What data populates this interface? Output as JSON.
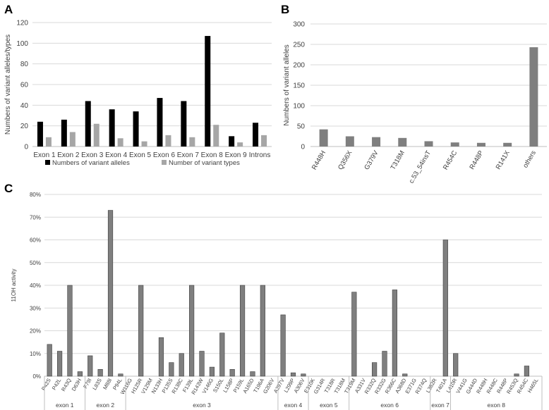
{
  "panels": {
    "a": "A",
    "b": "B",
    "c": "C"
  },
  "colors": {
    "black_series": "#000000",
    "gray_series": "#a6a6a6",
    "bar_b": "#7f7f7f",
    "bar_c": "#7f7f7f",
    "grid": "#d9d9d9",
    "axis": "#bfbfbf",
    "text": "#404040"
  },
  "chart_data": [
    {
      "panel": "A",
      "type": "bar",
      "ylabel": "Numbers of variant alleles/types",
      "xlabel": "",
      "ylim": [
        0,
        120
      ],
      "yticks": [
        0,
        20,
        40,
        60,
        80,
        100,
        120
      ],
      "grid": true,
      "legend_placement": "bottom",
      "categories": [
        "Exon 1",
        "Exon 2",
        "Exon 3",
        "Exon 4",
        "Exon 5",
        "Exon 6",
        "Exon 7",
        "Exon 8",
        "Exon 9",
        "Introns"
      ],
      "series": [
        {
          "name": "Numbers of variant alleles",
          "values": [
            24,
            26,
            44,
            36,
            34,
            47,
            44,
            107,
            10,
            23
          ]
        },
        {
          "name": "Number of variant types",
          "values": [
            9,
            14,
            22,
            8,
            5,
            11,
            9,
            21,
            4,
            11
          ]
        }
      ]
    },
    {
      "panel": "B",
      "type": "bar",
      "ylabel": "Numbers of variant alleles",
      "xlabel": "",
      "ylim": [
        0,
        300
      ],
      "yticks": [
        0,
        50,
        100,
        150,
        200,
        250,
        300
      ],
      "grid": true,
      "categories": [
        "R448H",
        "Q356X",
        "G379V",
        "T318M",
        "c.53_54insT",
        "R454C",
        "R448P",
        "R141X",
        "others"
      ],
      "values": [
        42,
        25,
        23,
        21,
        13,
        10,
        9,
        9,
        243
      ]
    },
    {
      "panel": "C",
      "type": "bar",
      "ylabel": "11OH activity",
      "xlabel": "",
      "ylim": [
        0,
        80
      ],
      "yticks": [
        "0%",
        "10%",
        "20%",
        "30%",
        "40%",
        "50%",
        "60%",
        "70%",
        "80%"
      ],
      "grid": true,
      "categories": [
        "P42S",
        "P42L",
        "R43Q",
        "D63H",
        "F79I",
        "L83S",
        "M88I",
        "P94L",
        "W116G",
        "H125R",
        "V129M",
        "N133H",
        "P135S",
        "R138C",
        "F139L",
        "R143W",
        "V146G",
        "S150L",
        "L158P",
        "P159L",
        "A165D",
        "T196A",
        "G206V",
        "A297V",
        "L299P",
        "A306V",
        "E310K",
        "G314R",
        "T318R",
        "T318M",
        "T319M",
        "A331V",
        "R332Q",
        "R332G",
        "R366C",
        "A368D",
        "E371G",
        "R374Q",
        "L382R",
        "T401A",
        "L410R",
        "V441G",
        "G444D",
        "R448H",
        "R448C",
        "R448P",
        "R453Q",
        "R454C",
        "H465L"
      ],
      "values": [
        14,
        11,
        40,
        2,
        9,
        3,
        73,
        1,
        0,
        40,
        0,
        17,
        6,
        10,
        40,
        11,
        4,
        19,
        3,
        40,
        2,
        40,
        0,
        27,
        1.5,
        1,
        0,
        0,
        0,
        0,
        37,
        0,
        6,
        11,
        38,
        1,
        0,
        0,
        0,
        60,
        10,
        0,
        0,
        0,
        0,
        0,
        1,
        4.5,
        0
      ],
      "exon_groups": [
        {
          "label": "exon 1",
          "count": 4
        },
        {
          "label": "exon 2",
          "count": 4
        },
        {
          "label": "exon 3",
          "count": 15
        },
        {
          "label": "exon 4",
          "count": 3
        },
        {
          "label": "exon 5",
          "count": 4
        },
        {
          "label": "exon 6",
          "count": 8
        },
        {
          "label": "exon 7",
          "count": 2
        },
        {
          "label": "exon 8",
          "count": 9
        }
      ]
    }
  ]
}
